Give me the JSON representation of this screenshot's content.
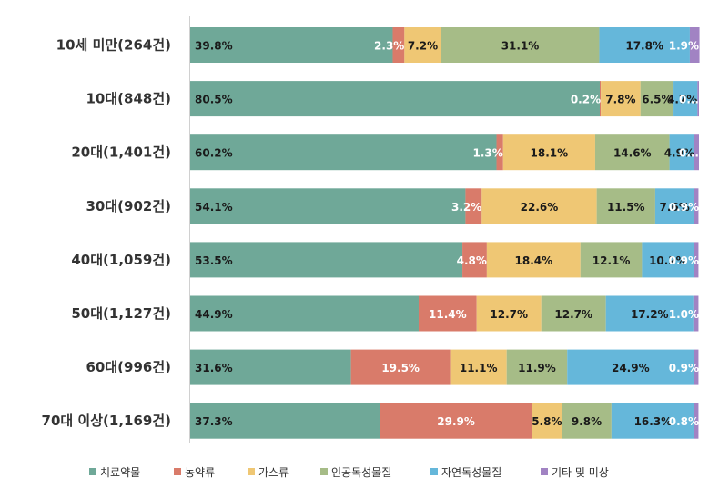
{
  "chart_data": {
    "type": "bar",
    "orientation": "horizontal",
    "stacked": true,
    "normalized": true,
    "title": "",
    "xlabel": "",
    "ylabel": "",
    "xlim": [
      0,
      100
    ],
    "grid": false,
    "legend_position": "bottom",
    "categories": [
      "10세 미만(264건)",
      "10대(848건)",
      "20대(1,401건)",
      "30대(902건)",
      "40대(1,059건)",
      "50대(1,127건)",
      "60대(996건)",
      "70대 이상(1,169건)"
    ],
    "series": [
      {
        "name": "치료약물",
        "color": "#6fa898",
        "label_color": "#1a1a1a",
        "values": [
          39.8,
          80.5,
          60.2,
          54.1,
          53.5,
          44.9,
          31.6,
          37.3
        ],
        "labels": [
          "39.8%",
          "80.5%",
          "60.2%",
          "54.1%",
          "53.5%",
          "44.9%",
          "31.6%",
          "37.3%"
        ]
      },
      {
        "name": "농약류",
        "color": "#d97b6a",
        "label_color": "#ffffff",
        "values": [
          2.3,
          0.2,
          1.3,
          3.2,
          4.8,
          11.4,
          19.5,
          29.9
        ],
        "labels": [
          "2.3%",
          "0.2%",
          "1.3%",
          "3.2%",
          "4.8%",
          "11.4%",
          "19.5%",
          "29.9%"
        ]
      },
      {
        "name": "가스류",
        "color": "#efc774",
        "label_color": "#1a1a1a",
        "values": [
          7.2,
          7.8,
          18.1,
          22.6,
          18.4,
          12.7,
          11.1,
          5.8
        ],
        "labels": [
          "7.2%",
          "7.8%",
          "18.1%",
          "22.6%",
          "18.4%",
          "12.7%",
          "11.1%",
          "5.8%"
        ]
      },
      {
        "name": "인공독성물질",
        "color": "#a6bc87",
        "label_color": "#1a1a1a",
        "values": [
          31.1,
          6.5,
          14.6,
          11.5,
          12.1,
          12.7,
          11.9,
          9.8
        ],
        "labels": [
          "31.1%",
          "6.5%",
          "14.6%",
          "11.5%",
          "12.1%",
          "12.7%",
          "11.9%",
          "9.8%"
        ]
      },
      {
        "name": "자연독성물질",
        "color": "#65b7da",
        "label_color": "#1a1a1a",
        "values": [
          17.8,
          4.7,
          4.9,
          7.6,
          10.2,
          17.2,
          24.9,
          16.3
        ],
        "labels": [
          "17.8%",
          "4.7%",
          "4.9%",
          "7.6%",
          "10.2%",
          "17.2%",
          "24.9%",
          "16.3%"
        ]
      },
      {
        "name": "기타 및 미상",
        "color": "#a183c3",
        "label_color": "#ffffff",
        "values": [
          1.9,
          0.3,
          0.9,
          0.9,
          0.9,
          1.0,
          0.9,
          0.8
        ],
        "labels": [
          "1.9%",
          "0...",
          "0...",
          "0.9%",
          "0.9%",
          "1.0%",
          "0.9%",
          "0.8%"
        ]
      }
    ]
  }
}
